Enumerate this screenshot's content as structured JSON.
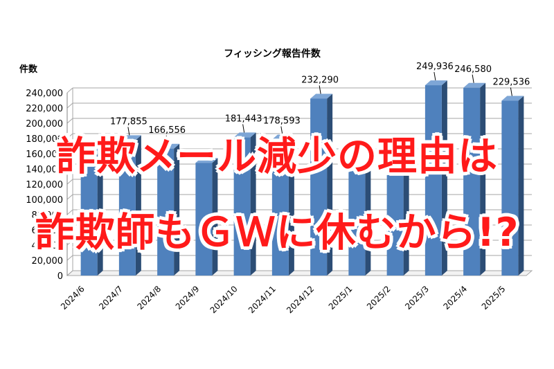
{
  "chart_data": {
    "type": "bar",
    "title": "フィッシング報告件数",
    "ylabel": "件数",
    "xlabel": "",
    "ylim": [
      0,
      240000
    ],
    "ytick_labels": [
      "0",
      "20,000",
      "40,000",
      "60,000",
      "80,000",
      "100,000",
      "120,000",
      "140,000",
      "160,000",
      "180,000",
      "200,000",
      "220,000",
      "240,000"
    ],
    "categories": [
      "2024/6",
      "2024/7",
      "2024/8",
      "2024/9",
      "2024/10",
      "2024/11",
      "2024/12",
      "2025/1",
      "2025/2",
      "2025/3",
      "2025/4",
      "2025/5"
    ],
    "values": [
      160000,
      177855,
      166556,
      148000,
      181443,
      178593,
      232290,
      140000,
      165000,
      249936,
      246580,
      229536
    ],
    "data_labels": [
      "",
      "177,855",
      "166,556",
      "",
      "181,443",
      "178,593",
      "232,290",
      "",
      "",
      "249,936",
      "246,580",
      "229,536"
    ],
    "grid": true,
    "bar_color": "#4f81bd"
  },
  "overlay": {
    "line1": "詐欺メール減少の理由は",
    "line2": "詐欺師もＧＷに休むから!?",
    "color": "#ff1a1a"
  }
}
